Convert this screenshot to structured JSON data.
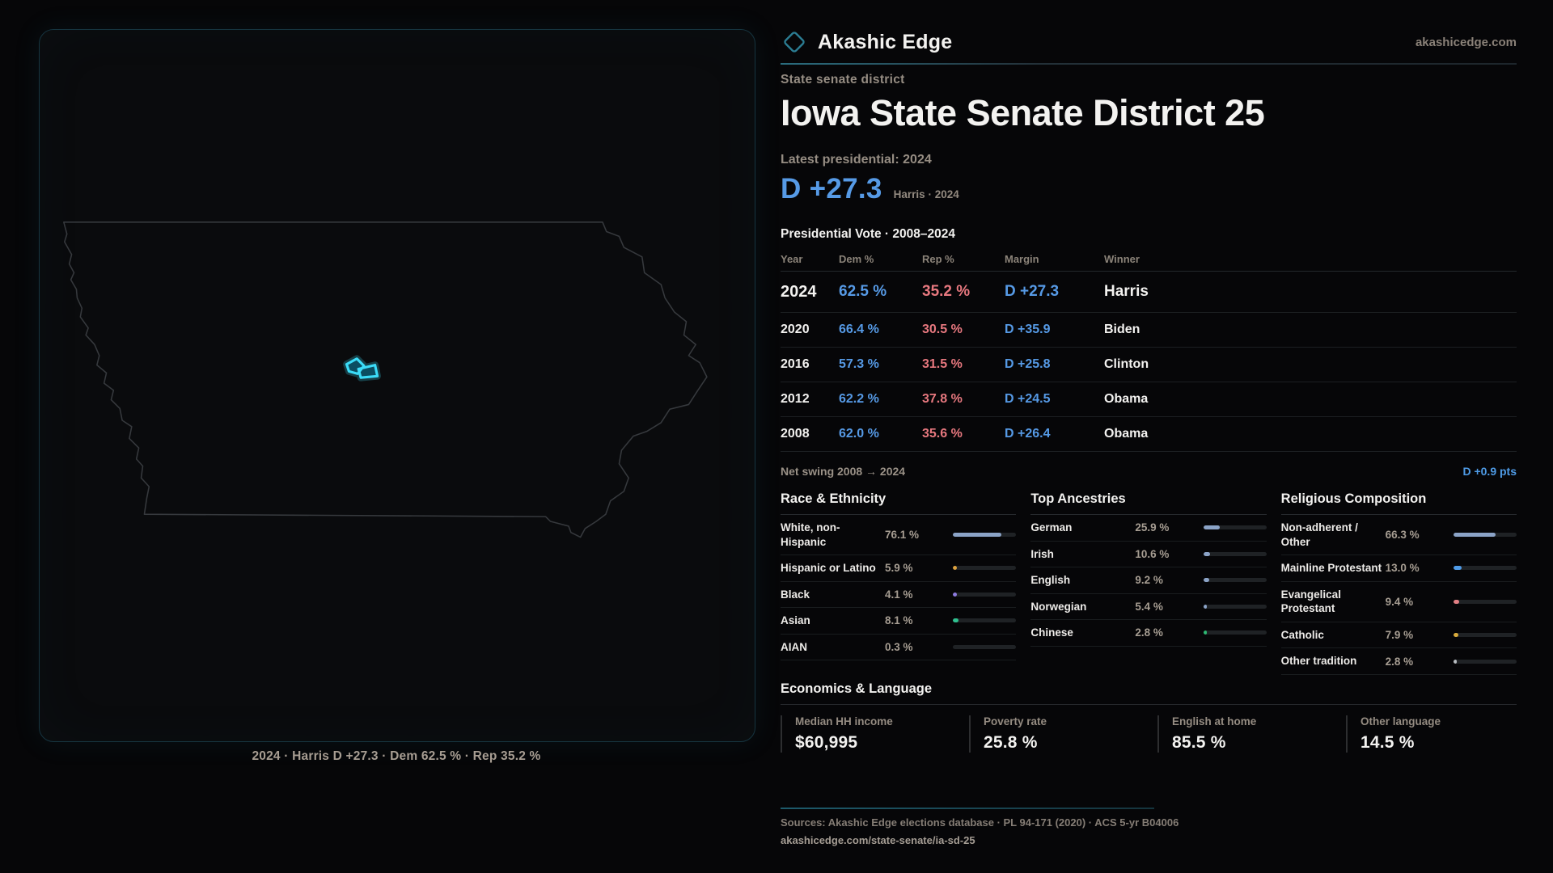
{
  "brand": {
    "name": "Akashic Edge",
    "domain": "akashicedge.com"
  },
  "hero": {
    "eyebrow": "State senate district",
    "title": "Iowa State Senate District 25",
    "latest_label": "Latest presidential: 2024",
    "margin": "D +27.3",
    "margin_context": "Harris · 2024"
  },
  "map": {
    "caption": "2024 · Harris D +27.3 · Dem 62.5 % · Rep 35.2 %",
    "outline_color": "#36393d",
    "district_color": "#3bdcf8"
  },
  "vote_table": {
    "title": "Presidential Vote · 2008–2024",
    "columns": [
      "Year",
      "Dem %",
      "Rep %",
      "Margin",
      "Winner"
    ],
    "rows": [
      {
        "year": "2024",
        "dem": "62.5 %",
        "rep": "35.2 %",
        "margin": "D +27.3",
        "winner": "Harris"
      },
      {
        "year": "2020",
        "dem": "66.4 %",
        "rep": "30.5 %",
        "margin": "D +35.9",
        "winner": "Biden"
      },
      {
        "year": "2016",
        "dem": "57.3 %",
        "rep": "31.5 %",
        "margin": "D +25.8",
        "winner": "Clinton"
      },
      {
        "year": "2012",
        "dem": "62.2 %",
        "rep": "37.8 %",
        "margin": "D +24.5",
        "winner": "Obama"
      },
      {
        "year": "2008",
        "dem": "62.0 %",
        "rep": "35.6 %",
        "margin": "D +26.4",
        "winner": "Obama"
      }
    ],
    "net_swing_label": "Net swing 2008 → 2024",
    "net_swing_value": "D +0.9 pts"
  },
  "race": {
    "title": "Race & Ethnicity",
    "items": [
      {
        "label": "White, non-Hispanic",
        "value": "76.1 %",
        "pct": 76.1,
        "color": "#8ba3c7"
      },
      {
        "label": "Hispanic or Latino",
        "value": "5.9 %",
        "pct": 5.9,
        "color": "#dda23f"
      },
      {
        "label": "Black",
        "value": "4.1 %",
        "pct": 4.1,
        "color": "#8d7be0"
      },
      {
        "label": "Asian",
        "value": "8.1 %",
        "pct": 8.1,
        "color": "#2fc08f"
      },
      {
        "label": "AIAN",
        "value": "0.3 %",
        "pct": 0.3,
        "color": "#8ba3c7"
      }
    ]
  },
  "ancestries": {
    "title": "Top Ancestries",
    "items": [
      {
        "label": "German",
        "value": "25.9 %",
        "pct": 25.9,
        "color": "#8ba3c7"
      },
      {
        "label": "Irish",
        "value": "10.6 %",
        "pct": 10.6,
        "color": "#8ba3c7"
      },
      {
        "label": "English",
        "value": "9.2 %",
        "pct": 9.2,
        "color": "#8ba3c7"
      },
      {
        "label": "Norwegian",
        "value": "5.4 %",
        "pct": 5.4,
        "color": "#8ba3c7"
      },
      {
        "label": "Chinese",
        "value": "2.8 %",
        "pct": 2.8,
        "color": "#2db873"
      }
    ]
  },
  "religion": {
    "title": "Religious Composition",
    "items": [
      {
        "label": "Non-adherent / Other",
        "value": "66.3 %",
        "pct": 66.3,
        "color": "#8ba3c7"
      },
      {
        "label": "Mainline Protestant",
        "value": "13.0 %",
        "pct": 13.0,
        "color": "#4f9be8"
      },
      {
        "label": "Evangelical Protestant",
        "value": "9.4 %",
        "pct": 9.4,
        "color": "#e27f84"
      },
      {
        "label": "Catholic",
        "value": "7.9 %",
        "pct": 7.9,
        "color": "#d9ab3c"
      },
      {
        "label": "Other tradition",
        "value": "2.8 %",
        "pct": 2.8,
        "color": "#b9bdc2"
      }
    ]
  },
  "economics": {
    "title": "Economics & Language",
    "stats": [
      {
        "label": "Median HH income",
        "value": "$60,995"
      },
      {
        "label": "Poverty rate",
        "value": "25.8 %"
      },
      {
        "label": "English at home",
        "value": "85.5 %"
      },
      {
        "label": "Other language",
        "value": "14.5 %"
      }
    ]
  },
  "footer": {
    "sources": "Sources: Akashic Edge elections database · PL 94-171 (2020) · ACS 5-yr B04006",
    "permalink": "akashicedge.com/state-senate/ia-sd-25"
  }
}
